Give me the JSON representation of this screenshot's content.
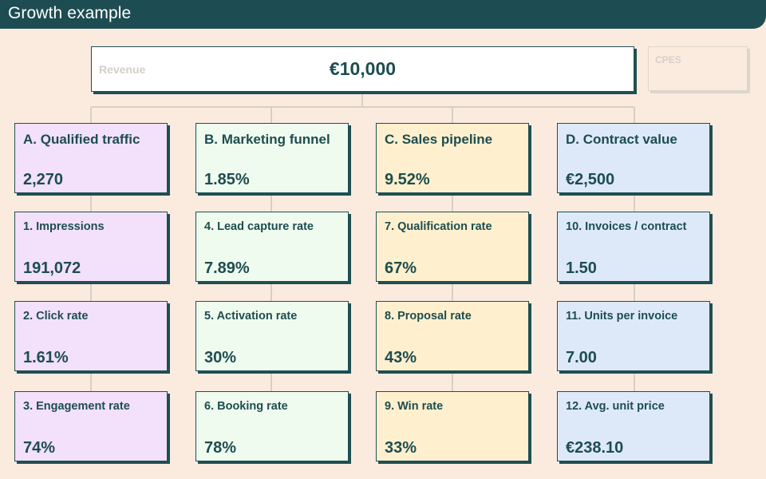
{
  "header": {
    "title": "Growth example"
  },
  "revenue": {
    "label": "Revenue",
    "value": "€10,000"
  },
  "cpes": {
    "label": "CPES"
  },
  "columns": [
    {
      "color": "#f3e0fa",
      "driver": {
        "title": "A. Qualified traffic",
        "value": "2,270"
      },
      "metrics": [
        {
          "title": "1. Impressions",
          "value": "191,072"
        },
        {
          "title": "2. Click rate",
          "value": "1.61%"
        },
        {
          "title": "3. Engagement rate",
          "value": "74%"
        }
      ]
    },
    {
      "color": "#effbef",
      "driver": {
        "title": "B. Marketing funnel",
        "value": "1.85%"
      },
      "metrics": [
        {
          "title": "4. Lead capture rate",
          "value": "7.89%"
        },
        {
          "title": "5. Activation rate",
          "value": "30%"
        },
        {
          "title": "6. Booking rate",
          "value": "78%"
        }
      ]
    },
    {
      "color": "#fef0ce",
      "driver": {
        "title": "C. Sales pipeline",
        "value": "9.52%"
      },
      "metrics": [
        {
          "title": "7. Qualification rate",
          "value": "67%"
        },
        {
          "title": "8. Proposal rate",
          "value": "43%"
        },
        {
          "title": "9. Win rate",
          "value": "33%"
        }
      ]
    },
    {
      "color": "#dde9f9",
      "driver": {
        "title": "D. Contract value",
        "value": "€2,500"
      },
      "metrics": [
        {
          "title": "10. Invoices / contract",
          "value": "1.50"
        },
        {
          "title": "11. Units per invoice",
          "value": "7.00"
        },
        {
          "title": "12. Avg. unit price",
          "value": "€238.10"
        }
      ]
    }
  ]
}
